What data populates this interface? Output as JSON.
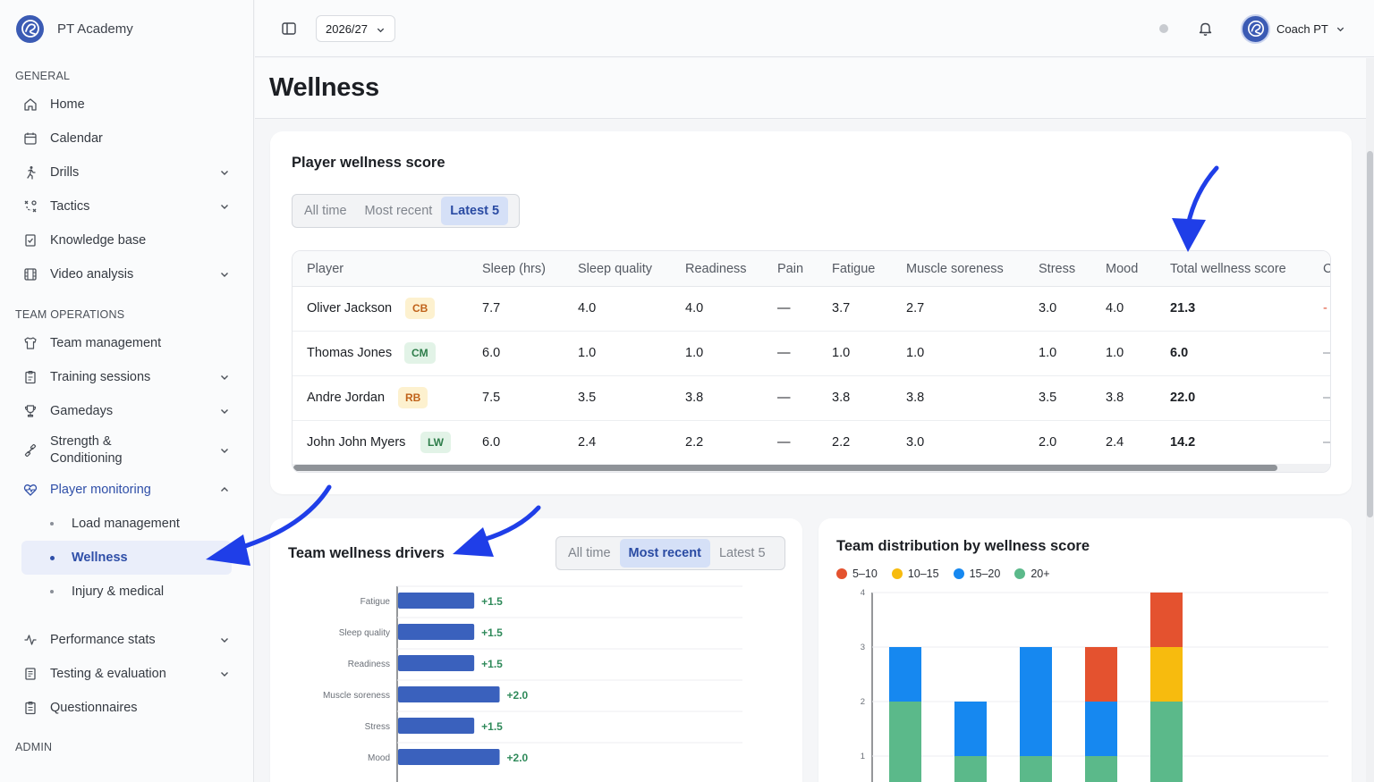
{
  "app": {
    "name": "PT Academy"
  },
  "sidebar": {
    "sections": [
      {
        "label": "GENERAL"
      },
      {
        "label": "TEAM OPERATIONS"
      },
      {
        "label": "ADMIN"
      }
    ],
    "general": [
      {
        "label": "Home",
        "icon": "home-icon"
      },
      {
        "label": "Calendar",
        "icon": "calendar-icon"
      },
      {
        "label": "Drills",
        "icon": "running-person-icon"
      },
      {
        "label": "Tactics",
        "icon": "tactics-icon"
      },
      {
        "label": "Knowledge base",
        "icon": "book-icon"
      },
      {
        "label": "Video analysis",
        "icon": "film-icon"
      }
    ],
    "team_ops": [
      {
        "label": "Team management",
        "icon": "shirt-icon"
      },
      {
        "label": "Training sessions",
        "icon": "clipboard-icon"
      },
      {
        "label": "Gamedays",
        "icon": "trophy-icon"
      },
      {
        "label": "Strength & Conditioning",
        "icon": "dumbbell-icon"
      },
      {
        "label": "Player monitoring",
        "icon": "heart-pulse-icon"
      }
    ],
    "monitoring_sub": [
      {
        "label": "Load management"
      },
      {
        "label": "Wellness"
      },
      {
        "label": "Injury & medical"
      }
    ],
    "more": [
      {
        "label": "Performance stats",
        "icon": "activity-icon"
      },
      {
        "label": "Testing & evaluation",
        "icon": "test-icon"
      },
      {
        "label": "Questionnaires",
        "icon": "questionnaire-icon"
      }
    ]
  },
  "topbar": {
    "season": "2026/27",
    "user": "Coach PT"
  },
  "page": {
    "title": "Wellness"
  },
  "wellness_score": {
    "title": "Player wellness score",
    "tabs": [
      "All time",
      "Most recent",
      "Latest 5"
    ],
    "active_tab": 2,
    "columns": [
      "Player",
      "Sleep (hrs)",
      "Sleep quality",
      "Readiness",
      "Pain",
      "Fatigue",
      "Muscle soreness",
      "Stress",
      "Mood",
      "Total wellness score",
      "C"
    ],
    "rows": [
      {
        "player": "Oliver Jackson",
        "pos": "CB",
        "sleep_hrs": "7.7",
        "sleep_quality": "4.0",
        "readiness": "4.0",
        "pain": "—",
        "fatigue": "3.7",
        "soreness": "2.7",
        "stress": "3.0",
        "mood": "4.0",
        "total": "21.3",
        "extra": "-"
      },
      {
        "player": "Thomas Jones",
        "pos": "CM",
        "sleep_hrs": "6.0",
        "sleep_quality": "1.0",
        "readiness": "1.0",
        "pain": "—",
        "fatigue": "1.0",
        "soreness": "1.0",
        "stress": "1.0",
        "mood": "1.0",
        "total": "6.0",
        "extra": "—"
      },
      {
        "player": "Andre Jordan",
        "pos": "RB",
        "sleep_hrs": "7.5",
        "sleep_quality": "3.5",
        "readiness": "3.8",
        "pain": "—",
        "fatigue": "3.8",
        "soreness": "3.8",
        "stress": "3.5",
        "mood": "3.8",
        "total": "22.0",
        "extra": "—"
      },
      {
        "player": "John John Myers",
        "pos": "LW",
        "sleep_hrs": "6.0",
        "sleep_quality": "2.4",
        "readiness": "2.2",
        "pain": "—",
        "fatigue": "2.2",
        "soreness": "3.0",
        "stress": "2.0",
        "mood": "2.4",
        "total": "14.2",
        "extra": "—"
      }
    ]
  },
  "drivers": {
    "title": "Team wellness drivers",
    "tabs": [
      "All time",
      "Most recent",
      "Latest 5"
    ],
    "active_tab": 1
  },
  "distribution": {
    "title": "Team distribution by wellness score"
  },
  "chart_data": [
    {
      "type": "bar",
      "orientation": "horizontal",
      "title": "Team wellness drivers",
      "categories": [
        "Fatigue",
        "Sleep quality",
        "Readiness",
        "Muscle soreness",
        "Stress",
        "Mood"
      ],
      "values": [
        1.5,
        1.5,
        1.5,
        2.0,
        1.5,
        2.0
      ],
      "value_labels": [
        "+1.5",
        "+1.5",
        "+1.5",
        "+2.0",
        "+1.5",
        "+2.0"
      ],
      "color": "#3a61bd",
      "xlim": [
        0,
        6.8
      ]
    },
    {
      "type": "bar",
      "stacked": true,
      "title": "Team distribution by wellness score",
      "legend_position": "top-left",
      "yticks": [
        "1",
        "2",
        "3",
        "4"
      ],
      "ylim": [
        0,
        4
      ],
      "series": [
        {
          "name": "5–10",
          "color": "#e4522f",
          "values": [
            0,
            0,
            0,
            1,
            1
          ]
        },
        {
          "name": "10–15",
          "color": "#f7bb0e",
          "values": [
            0,
            0,
            0,
            0,
            1
          ]
        },
        {
          "name": "15–20",
          "color": "#1688f0",
          "values": [
            1,
            1,
            2,
            1,
            0
          ]
        },
        {
          "name": "20+",
          "color": "#5bb98a",
          "values": [
            2,
            1,
            1,
            1,
            2
          ]
        }
      ]
    }
  ]
}
